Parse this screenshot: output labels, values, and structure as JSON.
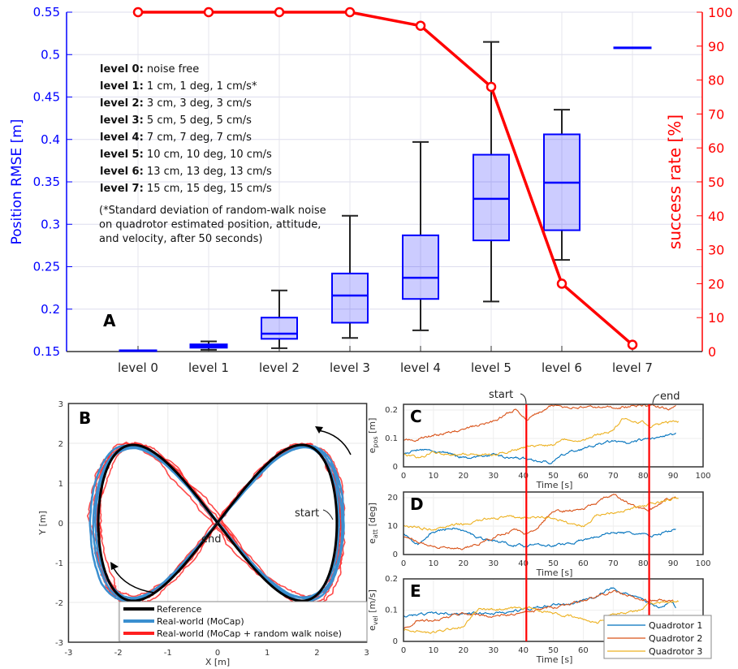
{
  "chart_data": [
    {
      "panel": "A",
      "type": "box+line",
      "label": "A",
      "categories": [
        "level 0",
        "level 1",
        "level 2",
        "level 3",
        "level 4",
        "level 5",
        "level 6",
        "level 7"
      ],
      "ylabel": "Position RMSE [m]",
      "ylim": [
        0.15,
        0.55
      ],
      "yticks": [
        "0.15",
        "0.2",
        "0.25",
        "0.3",
        "0.35",
        "0.4",
        "0.45",
        "0.5",
        "0.55"
      ],
      "y2label": "success rate [%]",
      "y2lim": [
        0,
        100
      ],
      "y2ticks": [
        "0",
        "10",
        "20",
        "30",
        "40",
        "50",
        "60",
        "70",
        "80",
        "90",
        "100"
      ],
      "grid": true,
      "box_color": "#0000ff",
      "line_color": "#ff0000",
      "boxes": [
        {
          "min": 0.151,
          "q1": 0.151,
          "median": 0.151,
          "q3": 0.151,
          "max": 0.151
        },
        {
          "min": 0.152,
          "q1": 0.155,
          "median": 0.156,
          "q3": 0.158,
          "max": 0.162
        },
        {
          "min": 0.154,
          "q1": 0.165,
          "median": 0.171,
          "q3": 0.19,
          "max": 0.222
        },
        {
          "min": 0.166,
          "q1": 0.184,
          "median": 0.216,
          "q3": 0.242,
          "max": 0.31
        },
        {
          "min": 0.175,
          "q1": 0.212,
          "median": 0.237,
          "q3": 0.287,
          "max": 0.397
        },
        {
          "min": 0.209,
          "q1": 0.281,
          "median": 0.33,
          "q3": 0.382,
          "max": 0.515
        },
        {
          "min": 0.258,
          "q1": 0.293,
          "median": 0.349,
          "q3": 0.406,
          "max": 0.435
        },
        {
          "min": 0.508,
          "q1": 0.508,
          "median": 0.508,
          "q3": 0.508,
          "max": 0.508
        }
      ],
      "success_rate": [
        100,
        100,
        100,
        100,
        96,
        78,
        20,
        2
      ],
      "notes": [
        {
          "k": "level 0:",
          "v": " noise free"
        },
        {
          "k": "level 1:",
          "v": " 1 cm, 1 deg, 1 cm/s*"
        },
        {
          "k": "level 2:",
          "v": " 3 cm, 3 deg, 3 cm/s"
        },
        {
          "k": "level 3:",
          "v": " 5 cm, 5 deg, 5 cm/s"
        },
        {
          "k": "level 4:",
          "v": " 7 cm, 7 deg, 7 cm/s"
        },
        {
          "k": "level 5:",
          "v": " 10 cm, 10 deg, 10 cm/s"
        },
        {
          "k": "level 6:",
          "v": " 13 cm, 13 deg, 13 cm/s"
        },
        {
          "k": "level 7:",
          "v": " 15 cm, 15 deg, 15 cm/s"
        }
      ],
      "footnote": [
        "(*Standard deviation of random-walk noise",
        "on quadrotor estimated position, attitude,",
        "and velocity, after 50 seconds)"
      ]
    },
    {
      "panel": "B",
      "type": "line",
      "label": "B",
      "xlabel": "X [m]",
      "ylabel": "Y [m]",
      "xlim": [
        -3,
        3
      ],
      "ylim": [
        -3,
        3
      ],
      "xticks": [
        "-3",
        "-2",
        "-1",
        "0",
        "1",
        "2",
        "3"
      ],
      "yticks": [
        "-3",
        "-2",
        "-1",
        "0",
        "1",
        "2",
        "3"
      ],
      "grid": true,
      "trajectory": "figure-eight",
      "x_amplitude": 2.4,
      "y_amplitude": 2.0,
      "annotations": [
        "start",
        "end"
      ],
      "legend": {
        "placement": "bottom",
        "entries": [
          {
            "name": "Reference",
            "color": "#000000"
          },
          {
            "name": "Real-world (MoCap)",
            "color": "#3a8fd0"
          },
          {
            "name": "Real-world (MoCap + random walk noise)",
            "color": "#ff2020"
          }
        ]
      }
    },
    {
      "panel": "C",
      "type": "line",
      "label": "C",
      "ylabel_main": "e",
      "ylabel_sub": "pos",
      "ylabel_unit": " [m]",
      "xlabel": "Time [s]",
      "xlim": [
        0,
        100
      ],
      "ylim": [
        0,
        0.22
      ],
      "yticks": [
        "0",
        "0.1",
        "0.2"
      ],
      "series": [
        {
          "name": "Quadrotor 1",
          "t": [
            0,
            5,
            10,
            20,
            30,
            40,
            49,
            55,
            60,
            70,
            75,
            80,
            90,
            91
          ],
          "y": [
            0.045,
            0.06,
            0.055,
            0.035,
            0.04,
            0.03,
            0.015,
            0.05,
            0.065,
            0.09,
            0.08,
            0.095,
            0.11,
            0.115
          ]
        },
        {
          "name": "Quadrotor 2",
          "t": [
            0,
            10,
            20,
            30,
            37,
            41,
            50,
            60,
            70,
            80,
            90,
            91
          ],
          "y": [
            0.09,
            0.11,
            0.13,
            0.16,
            0.2,
            0.17,
            0.215,
            0.21,
            0.21,
            0.215,
            0.205,
            0.215
          ]
        },
        {
          "name": "Quadrotor 3",
          "t": [
            0,
            5,
            10,
            20,
            30,
            40,
            50,
            53,
            60,
            70,
            73,
            80,
            82,
            90,
            92
          ],
          "y": [
            0.045,
            0.03,
            0.05,
            0.045,
            0.04,
            0.07,
            0.08,
            0.1,
            0.095,
            0.13,
            0.165,
            0.16,
            0.14,
            0.16,
            0.16
          ]
        }
      ]
    },
    {
      "panel": "D",
      "type": "line",
      "label": "D",
      "ylabel_main": "e",
      "ylabel_sub": "att",
      "ylabel_unit": " [deg]",
      "xlabel": "Time [s]",
      "xlim": [
        0,
        100
      ],
      "ylim": [
        0,
        22
      ],
      "yticks": [
        "0",
        "10",
        "20"
      ],
      "series": [
        {
          "name": "Quadrotor 1",
          "t": [
            0,
            5,
            10,
            17,
            25,
            30,
            40,
            45,
            50,
            60,
            70,
            80,
            82,
            90,
            91
          ],
          "y": [
            7,
            4,
            8,
            9.5,
            6,
            5,
            3,
            4,
            3,
            5,
            8,
            7,
            6,
            9,
            9
          ]
        },
        {
          "name": "Quadrotor 2",
          "t": [
            0,
            10,
            20,
            30,
            37,
            41,
            45,
            50,
            60,
            70,
            75,
            82,
            90,
            91
          ],
          "y": [
            6,
            3,
            1.5,
            6,
            9,
            7,
            10,
            15,
            16,
            21,
            18,
            15.5,
            20,
            20
          ]
        },
        {
          "name": "Quadrotor 3",
          "t": [
            0,
            10,
            20,
            30,
            40,
            50,
            55,
            60,
            65,
            70,
            80,
            90,
            92
          ],
          "y": [
            10,
            9,
            10.5,
            13,
            13,
            13,
            11,
            10,
            14,
            15,
            17,
            19.5,
            19.5
          ]
        }
      ]
    },
    {
      "panel": "E",
      "type": "line",
      "label": "E",
      "ylabel_main": "e",
      "ylabel_sub": "vel",
      "ylabel_unit": " [m/s]",
      "xlabel": "Time [s]",
      "xlim": [
        0,
        100
      ],
      "ylim": [
        0,
        0.2
      ],
      "yticks": [
        "0",
        "0.1",
        "0.2"
      ],
      "series": [
        {
          "name": "Quadrotor 1",
          "t": [
            0,
            10,
            20,
            30,
            40,
            50,
            60,
            70,
            80,
            85,
            90,
            91
          ],
          "y": [
            0.08,
            0.09,
            0.09,
            0.09,
            0.1,
            0.115,
            0.13,
            0.17,
            0.13,
            0.11,
            0.125,
            0.11
          ]
        },
        {
          "name": "Quadrotor 2",
          "t": [
            0,
            5,
            10,
            20,
            30,
            40,
            50,
            60,
            70,
            80,
            90
          ],
          "y": [
            0.04,
            0.07,
            0.065,
            0.09,
            0.08,
            0.09,
            0.11,
            0.13,
            0.16,
            0.13,
            0.13
          ]
        },
        {
          "name": "Quadrotor 3",
          "t": [
            0,
            9,
            15,
            20,
            25,
            35,
            41,
            50,
            60,
            65,
            70,
            80,
            82,
            90,
            92
          ],
          "y": [
            0.04,
            0.025,
            0.04,
            0.05,
            0.1,
            0.1,
            0.11,
            0.09,
            0.07,
            0.06,
            0.09,
            0.1,
            0.12,
            0.13,
            0.13
          ]
        }
      ],
      "legend": {
        "placement": "bottom-right"
      }
    }
  ],
  "xticks_time": [
    "0",
    "10",
    "20",
    "30",
    "40",
    "50",
    "60",
    "70",
    "80",
    "90",
    "100"
  ],
  "series_colors": [
    "#0072BD",
    "#D95319",
    "#EDB120"
  ],
  "markers": {
    "start": {
      "label": "start",
      "t": 41
    },
    "end": {
      "label": "end",
      "t": 82
    }
  }
}
